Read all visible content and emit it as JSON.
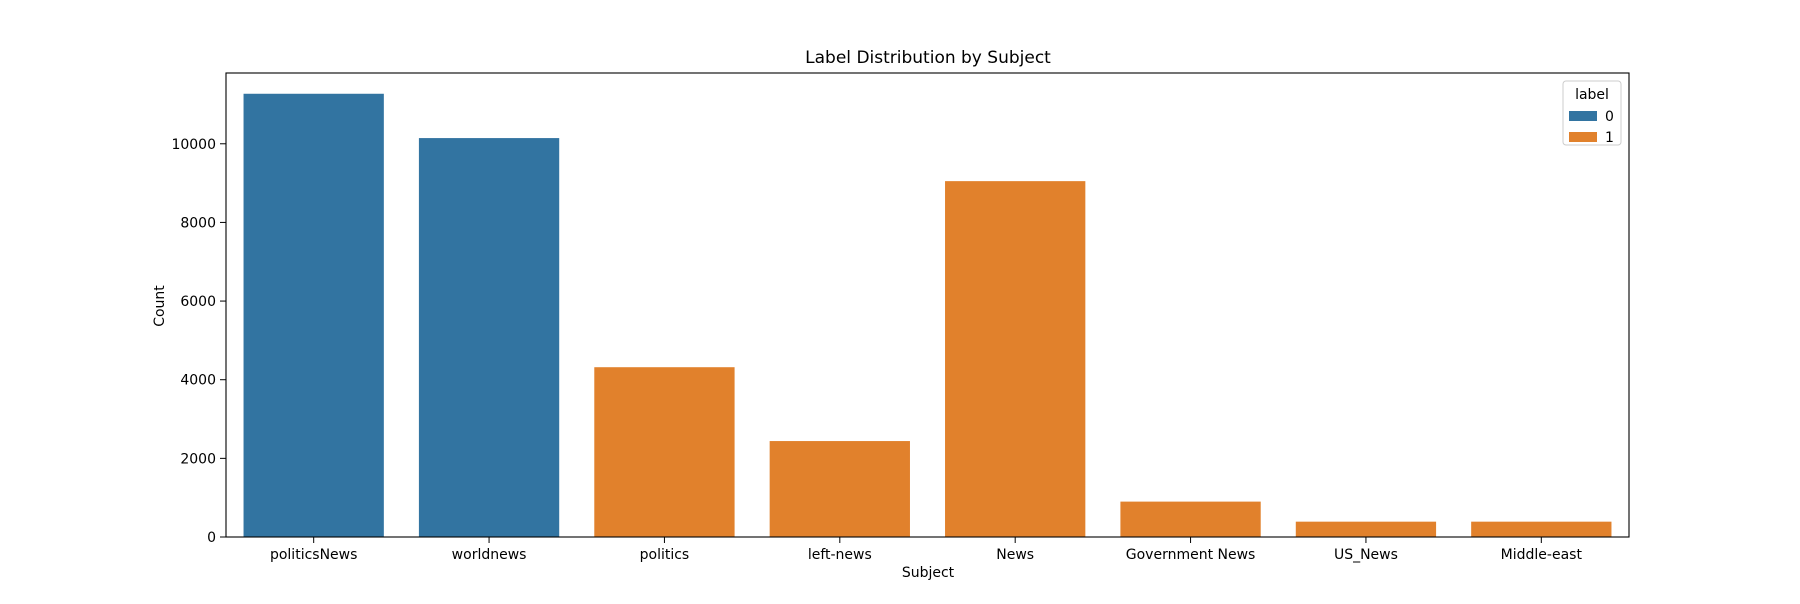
{
  "chart_data": {
    "type": "bar",
    "title": "Label Distribution by Subject",
    "xlabel": "Subject",
    "ylabel": "Count",
    "categories": [
      "politicsNews",
      "worldnews",
      "politics",
      "left-news",
      "News",
      "Government News",
      "US_News",
      "Middle-east"
    ],
    "series": [
      {
        "name": "0",
        "color": "#3274a1",
        "values": [
          11272,
          10145,
          null,
          null,
          null,
          null,
          null,
          null
        ]
      },
      {
        "name": "1",
        "color": "#e1812c",
        "values": [
          null,
          null,
          4318,
          2440,
          9050,
          900,
          390,
          390
        ]
      }
    ],
    "ylim": [
      0,
      11800
    ],
    "yticks": [
      0,
      2000,
      4000,
      6000,
      8000,
      10000
    ],
    "legend": {
      "title": "label",
      "position": "top-right",
      "entries": [
        "0",
        "1"
      ]
    },
    "grid": false
  }
}
